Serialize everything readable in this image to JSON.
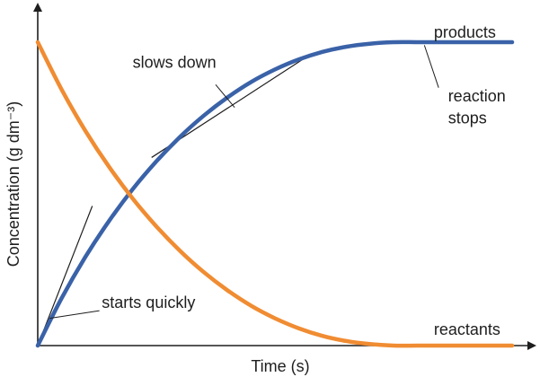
{
  "chart_data": {
    "type": "line",
    "xlabel": "Time (s)",
    "ylabel": "Concentration (g dm⁻³)",
    "xlim": [
      0,
      100
    ],
    "ylim": [
      0,
      100
    ],
    "grid": false,
    "series": [
      {
        "name": "products",
        "color": "#3a62a8",
        "x": [
          0,
          5,
          10,
          15,
          20,
          25,
          30,
          35,
          40,
          45,
          50,
          55,
          60,
          65,
          70,
          75,
          80,
          85,
          90,
          95,
          100
        ],
        "values": [
          0,
          15.5,
          29.1,
          41.0,
          51.5,
          60.7,
          68.8,
          75.8,
          81.8,
          86.9,
          91.0,
          94.3,
          96.8,
          98.5,
          99.5,
          100,
          100,
          100,
          100,
          100,
          100
        ]
      },
      {
        "name": "reactants",
        "color": "#f08c32",
        "x": [
          0,
          5,
          10,
          15,
          20,
          25,
          30,
          35,
          40,
          45,
          50,
          55,
          60,
          65,
          70,
          75,
          80,
          85,
          90,
          95,
          100
        ],
        "values": [
          100,
          84.5,
          70.9,
          59.0,
          48.5,
          39.3,
          31.2,
          24.2,
          18.2,
          13.1,
          9.0,
          5.7,
          3.2,
          1.5,
          0.5,
          0,
          0,
          0,
          0,
          0,
          0
        ]
      }
    ],
    "tangents": [
      {
        "x": [
          0,
          11.5
        ],
        "y": [
          0,
          46
        ]
      },
      {
        "x": [
          24,
          57.5
        ],
        "y": [
          62,
          96
        ]
      }
    ],
    "annotations": [
      {
        "key": "products",
        "text": "products",
        "x": 83.5,
        "y": 101.5
      },
      {
        "key": "reaction",
        "text": "reaction",
        "x": 86.5,
        "y": 80.5
      },
      {
        "key": "stops",
        "text": "stops",
        "x": 86.5,
        "y": 73.2
      },
      {
        "key": "slows",
        "text": "slows down",
        "x": 20,
        "y": 91.5
      },
      {
        "key": "starts",
        "text": "starts quickly",
        "x": 13.5,
        "y": 12.5
      },
      {
        "key": "reactants",
        "text": "reactants",
        "x": 83.5,
        "y": 3.5
      }
    ],
    "leaders": [
      {
        "from": [
          37.5,
          86
        ],
        "to": [
          41.5,
          78.5
        ]
      },
      {
        "from": [
          13,
          11.5
        ],
        "to": [
          2.5,
          9
        ]
      },
      {
        "from": [
          84.5,
          85
        ],
        "to": [
          81.5,
          99
        ]
      }
    ]
  }
}
